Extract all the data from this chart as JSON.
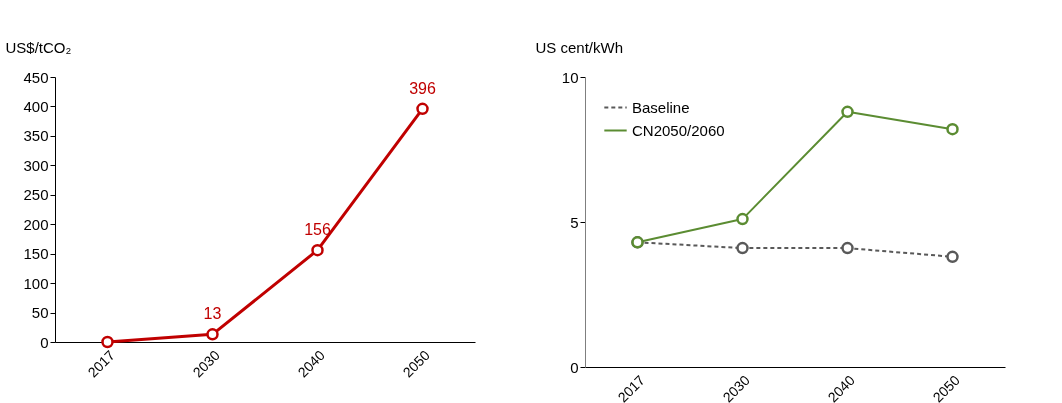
{
  "chart_data": [
    {
      "type": "line",
      "ylabel": "US$/tCO₂",
      "categories": [
        "2017",
        "2030",
        "2040",
        "2050"
      ],
      "series": [
        {
          "color": "#c00000",
          "values": [
            0,
            13,
            156,
            396
          ],
          "value_labels": [
            null,
            "13",
            "156",
            "396"
          ]
        }
      ],
      "ylim": [
        0,
        450
      ],
      "yticks": [
        0,
        50,
        100,
        150,
        200,
        250,
        300,
        350,
        400,
        450
      ],
      "marker": "circle",
      "line_style": "solid",
      "grid": false,
      "legend": false
    },
    {
      "type": "line",
      "ylabel": "US cent/kWh",
      "categories": [
        "2017",
        "2030",
        "2040",
        "2050"
      ],
      "series": [
        {
          "name": "Baseline",
          "color": "#595959",
          "values": [
            4.3,
            4.1,
            4.1,
            3.8
          ],
          "line_style": "dashed"
        },
        {
          "name": "CN2050/2060",
          "color": "#5b8c32",
          "values": [
            4.3,
            5.1,
            8.8,
            8.2
          ],
          "line_style": "solid"
        }
      ],
      "ylim": [
        0,
        10
      ],
      "yticks": [
        0,
        5,
        10
      ],
      "marker": "circle",
      "grid": false,
      "legend": "top left"
    }
  ]
}
